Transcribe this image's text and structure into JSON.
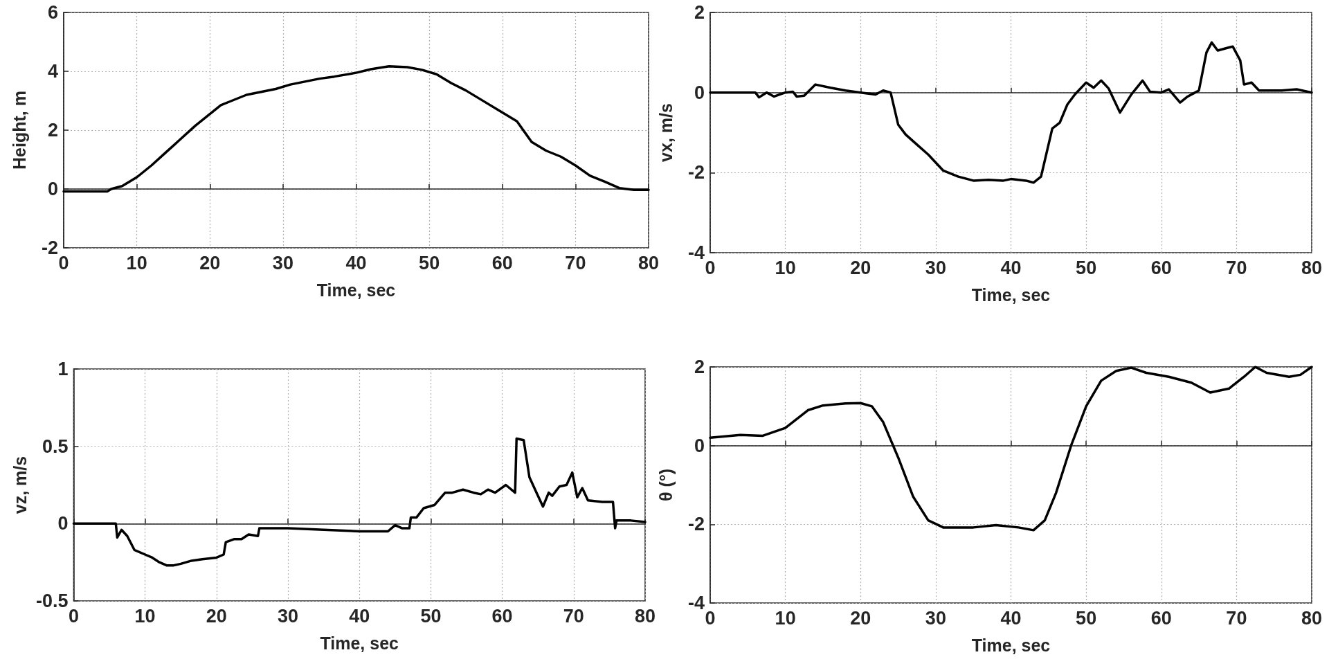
{
  "chart_data": [
    {
      "type": "line",
      "xlabel": "Time, sec",
      "ylabel": "Height, m",
      "xlim": [
        0,
        80
      ],
      "ylim": [
        -2,
        6
      ],
      "xticks": [
        0,
        10,
        20,
        30,
        40,
        50,
        60,
        70,
        80
      ],
      "yticks": [
        -2,
        0,
        2,
        4,
        6
      ],
      "grid": true,
      "marker": "none",
      "x": [
        0,
        6,
        6.5,
        8,
        10,
        12,
        14,
        16,
        18,
        20,
        21.5,
        23,
        25,
        27,
        29,
        31,
        33,
        35,
        37,
        40,
        42,
        44.5,
        47,
        49,
        51,
        53,
        55,
        57,
        60,
        62,
        64,
        66,
        68,
        70,
        72,
        74,
        76,
        78,
        80
      ],
      "series": [
        {
          "color": "#000000",
          "values": [
            -0.08,
            -0.08,
            0.0,
            0.1,
            0.4,
            0.8,
            1.25,
            1.7,
            2.15,
            2.55,
            2.85,
            3.0,
            3.2,
            3.3,
            3.4,
            3.55,
            3.65,
            3.75,
            3.82,
            3.95,
            4.07,
            4.17,
            4.14,
            4.05,
            3.9,
            3.6,
            3.35,
            3.05,
            2.6,
            2.3,
            1.6,
            1.3,
            1.1,
            0.8,
            0.45,
            0.25,
            0.03,
            -0.03,
            -0.03
          ]
        }
      ]
    },
    {
      "type": "line",
      "xlabel": "Time, sec",
      "ylabel": "vx, m/s",
      "xlim": [
        0,
        80
      ],
      "ylim": [
        -4,
        2
      ],
      "xticks": [
        0,
        10,
        20,
        30,
        40,
        50,
        60,
        70,
        80
      ],
      "yticks": [
        -4,
        -2,
        0,
        2
      ],
      "grid": true,
      "marker": "none",
      "x": [
        0,
        6,
        6.5,
        7.5,
        8.5,
        10,
        11,
        11.5,
        12.5,
        14,
        16,
        18,
        20,
        22,
        23,
        24,
        25,
        26,
        27.5,
        29,
        31,
        33,
        35,
        37,
        39,
        40,
        42,
        43,
        44,
        44.5,
        45.5,
        46.5,
        47.5,
        48.5,
        50,
        51,
        52,
        53,
        54.5,
        56,
        57.5,
        58.5,
        60,
        61,
        62.5,
        63.5,
        64.5,
        65,
        66,
        66.7,
        67.5,
        68.5,
        69.5,
        70.5,
        71,
        72,
        73,
        76,
        78,
        80
      ],
      "series": [
        {
          "color": "#000000",
          "values": [
            0,
            0,
            -0.12,
            0,
            -0.1,
            0,
            0.02,
            -0.1,
            -0.08,
            0.2,
            0.12,
            0.05,
            0,
            -0.05,
            0.05,
            0,
            -0.8,
            -1.05,
            -1.3,
            -1.55,
            -1.95,
            -2.1,
            -2.2,
            -2.18,
            -2.2,
            -2.16,
            -2.2,
            -2.25,
            -2.1,
            -1.7,
            -0.9,
            -0.75,
            -0.3,
            -0.05,
            0.25,
            0.12,
            0.3,
            0.1,
            -0.5,
            -0.05,
            0.3,
            0.02,
            0,
            0.08,
            -0.25,
            -0.1,
            0,
            0.05,
            1.0,
            1.25,
            1.05,
            1.1,
            1.15,
            0.8,
            0.2,
            0.25,
            0.05,
            0.05,
            0.08,
            0
          ]
        }
      ]
    },
    {
      "type": "line",
      "xlabel": "Time, sec",
      "ylabel": "vz, m/s",
      "xlim": [
        0,
        80
      ],
      "ylim": [
        -0.5,
        1
      ],
      "xticks": [
        0,
        10,
        20,
        30,
        40,
        50,
        60,
        70,
        80
      ],
      "yticks": [
        -0.5,
        0,
        0.5,
        1
      ],
      "grid": true,
      "marker": "none",
      "x": [
        0,
        5.9,
        6.1,
        6.7,
        7.5,
        8.5,
        10,
        11,
        12,
        13,
        14,
        15,
        16.5,
        18,
        20,
        21,
        21.3,
        22.5,
        23.5,
        24.5,
        25.8,
        26,
        30,
        35,
        40,
        44,
        45,
        46,
        47,
        47.2,
        48,
        49,
        50.5,
        52,
        53,
        54.5,
        56,
        57,
        58,
        59,
        60.5,
        61.8,
        62,
        63,
        63.8,
        64.8,
        65.7,
        66.5,
        67,
        68,
        69,
        69.8,
        70.5,
        71.2,
        72,
        74,
        75.5,
        75.8,
        76,
        78,
        80
      ],
      "series": [
        {
          "color": "#000000",
          "values": [
            0,
            0,
            -0.09,
            -0.04,
            -0.08,
            -0.17,
            -0.2,
            -0.22,
            -0.25,
            -0.27,
            -0.27,
            -0.26,
            -0.24,
            -0.23,
            -0.22,
            -0.2,
            -0.12,
            -0.1,
            -0.1,
            -0.07,
            -0.08,
            -0.03,
            -0.03,
            -0.04,
            -0.05,
            -0.05,
            -0.01,
            -0.03,
            -0.03,
            0.04,
            0.04,
            0.1,
            0.12,
            0.2,
            0.2,
            0.22,
            0.2,
            0.19,
            0.22,
            0.2,
            0.25,
            0.2,
            0.55,
            0.54,
            0.3,
            0.2,
            0.11,
            0.2,
            0.18,
            0.24,
            0.25,
            0.33,
            0.17,
            0.23,
            0.15,
            0.14,
            0.14,
            -0.03,
            0.02,
            0.02,
            0.01
          ]
        }
      ]
    },
    {
      "type": "line",
      "xlabel": "Time, sec",
      "ylabel": "θ (°)",
      "xlim": [
        0,
        80
      ],
      "ylim": [
        -4,
        2
      ],
      "xticks": [
        0,
        10,
        20,
        30,
        40,
        50,
        60,
        70,
        80
      ],
      "yticks": [
        -4,
        -2,
        0,
        2
      ],
      "grid": true,
      "marker": "none",
      "x": [
        0,
        4,
        7,
        10,
        13,
        15,
        18,
        20,
        21.5,
        23,
        25,
        27,
        29,
        31,
        35,
        38,
        41,
        43,
        44.5,
        46,
        48,
        50,
        52,
        54,
        56,
        58,
        61,
        64,
        66.5,
        69,
        71,
        72.5,
        74,
        77,
        78.5,
        80
      ],
      "series": [
        {
          "color": "#000000",
          "values": [
            0.2,
            0.27,
            0.25,
            0.45,
            0.9,
            1.02,
            1.07,
            1.08,
            1.0,
            0.6,
            -0.3,
            -1.3,
            -1.9,
            -2.08,
            -2.08,
            -2.02,
            -2.08,
            -2.15,
            -1.9,
            -1.2,
            0.0,
            1.0,
            1.65,
            1.9,
            1.98,
            1.85,
            1.75,
            1.6,
            1.35,
            1.45,
            1.75,
            2.0,
            1.85,
            1.75,
            1.8,
            2.0
          ]
        }
      ]
    }
  ]
}
